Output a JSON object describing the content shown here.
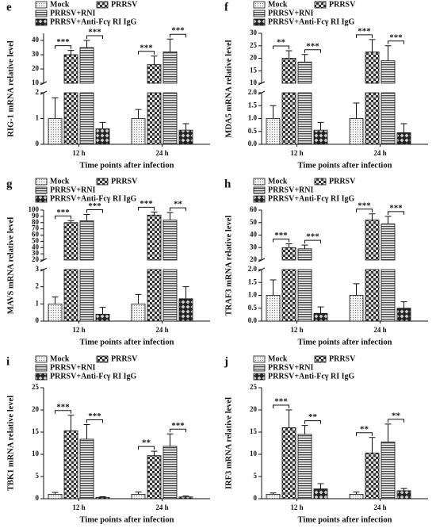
{
  "chart_data": [
    {
      "type": "bar",
      "panel_label": "e",
      "ylabel": "RIG-1 mRNA relative level",
      "xlabel": "Time points after infection",
      "categories": [
        "12 h",
        "24 h"
      ],
      "y_segments": [
        {
          "ylim": [
            0,
            2
          ],
          "yticks": [
            0,
            1,
            2
          ]
        },
        {
          "ylim": [
            10,
            45
          ],
          "yticks": [
            10,
            20,
            30,
            40
          ]
        }
      ],
      "series": [
        {
          "name": "Mock",
          "pattern": "dots",
          "values": [
            1.0,
            1.0
          ],
          "errors": [
            0.8,
            0.35
          ]
        },
        {
          "name": "PRRSV",
          "pattern": "checker",
          "values": [
            30,
            23
          ],
          "errors": [
            3,
            6
          ]
        },
        {
          "name": "PRRSV+RNI",
          "pattern": "stripes",
          "values": [
            35,
            32
          ],
          "errors": [
            5,
            9
          ]
        },
        {
          "name": "PRRSV+Anti-Fcγ RI IgG",
          "pattern": "diamond",
          "values": [
            0.6,
            0.55
          ],
          "errors": [
            0.25,
            0.25
          ]
        }
      ],
      "annotations": [
        {
          "text": "***",
          "category": 0,
          "series": [
            0,
            1
          ]
        },
        {
          "text": "***",
          "category": 0,
          "series": [
            2,
            3
          ]
        },
        {
          "text": "***",
          "category": 1,
          "series": [
            0,
            1
          ]
        },
        {
          "text": "***",
          "category": 1,
          "series": [
            2,
            3
          ]
        }
      ]
    },
    {
      "type": "bar",
      "panel_label": "f",
      "ylabel": "MDA5 mRNA relative level",
      "xlabel": "Time points after infection",
      "categories": [
        "12 h",
        "24 h"
      ],
      "y_segments": [
        {
          "ylim": [
            0,
            2
          ],
          "yticks": [
            {
              "value": 0,
              "label": "0.0"
            },
            0.5,
            {
              "value": 1,
              "label": "1.0"
            },
            1.5,
            {
              "value": 2,
              "label": "2.0"
            }
          ]
        },
        {
          "ylim": [
            10,
            30
          ],
          "yticks": [
            10,
            15,
            20,
            25,
            30
          ]
        }
      ],
      "series": [
        {
          "name": "Mock",
          "pattern": "dots",
          "values": [
            1.0,
            1.0
          ],
          "errors": [
            0.5,
            0.6
          ]
        },
        {
          "name": "PRRSV",
          "pattern": "checker",
          "values": [
            20,
            22.5
          ],
          "errors": [
            3,
            5
          ]
        },
        {
          "name": "PRRSV+RNI",
          "pattern": "stripes",
          "values": [
            18.5,
            19
          ],
          "errors": [
            3,
            6
          ]
        },
        {
          "name": "PRRSV+Anti-Fcγ RI IgG",
          "pattern": "diamond",
          "values": [
            0.55,
            0.45
          ],
          "errors": [
            0.3,
            0.35
          ]
        }
      ],
      "annotations": [
        {
          "text": "**",
          "category": 0,
          "series": [
            0,
            1
          ]
        },
        {
          "text": "***",
          "category": 0,
          "series": [
            2,
            3
          ]
        },
        {
          "text": "***",
          "category": 1,
          "series": [
            0,
            1
          ]
        },
        {
          "text": "***",
          "category": 1,
          "series": [
            2,
            3
          ]
        }
      ]
    },
    {
      "type": "bar",
      "panel_label": "g",
      "ylabel": "MAVS mRNA relative level",
      "xlabel": "Time points after infection",
      "categories": [
        "12 h",
        "24 h"
      ],
      "y_segments": [
        {
          "ylim": [
            0,
            3
          ],
          "yticks": [
            0,
            1,
            2,
            3
          ]
        },
        {
          "ylim": [
            20,
            100
          ],
          "yticks": [
            20,
            30,
            40,
            50,
            60,
            70,
            80,
            90,
            100
          ]
        }
      ],
      "series": [
        {
          "name": "Mock",
          "pattern": "dots",
          "values": [
            1.0,
            1.0
          ],
          "errors": [
            0.4,
            0.55
          ]
        },
        {
          "name": "PRRSV",
          "pattern": "checker",
          "values": [
            80,
            92
          ],
          "errors": [
            3,
            5
          ]
        },
        {
          "name": "PRRSV+RNI",
          "pattern": "stripes",
          "values": [
            83,
            84
          ],
          "errors": [
            10,
            12
          ]
        },
        {
          "name": "PRRSV+Anti-Fcγ RI IgG",
          "pattern": "diamond",
          "values": [
            0.4,
            1.3
          ],
          "errors": [
            0.4,
            0.7
          ]
        }
      ],
      "annotations": [
        {
          "text": "***",
          "category": 0,
          "series": [
            0,
            1
          ]
        },
        {
          "text": "***",
          "category": 0,
          "series": [
            2,
            3
          ]
        },
        {
          "text": "***",
          "category": 1,
          "series": [
            0,
            1
          ]
        },
        {
          "text": "**",
          "category": 1,
          "series": [
            2,
            3
          ]
        }
      ]
    },
    {
      "type": "bar",
      "panel_label": "h",
      "ylabel": "TRAF3 mRNA relative level",
      "xlabel": "Time points after infection",
      "categories": [
        "12 h",
        "24 h"
      ],
      "y_segments": [
        {
          "ylim": [
            0,
            2
          ],
          "yticks": [
            {
              "value": 0,
              "label": "0.0"
            },
            0.5,
            {
              "value": 1,
              "label": "1.0"
            },
            1.5,
            {
              "value": 2,
              "label": "2.0"
            }
          ]
        },
        {
          "ylim": [
            20,
            60
          ],
          "yticks": [
            20,
            30,
            40,
            50,
            60
          ]
        }
      ],
      "series": [
        {
          "name": "Mock",
          "pattern": "dots",
          "values": [
            1.0,
            1.0
          ],
          "errors": [
            0.6,
            0.45
          ]
        },
        {
          "name": "PRRSV",
          "pattern": "checker",
          "values": [
            30,
            52
          ],
          "errors": [
            3,
            5
          ]
        },
        {
          "name": "PRRSV+RNI",
          "pattern": "stripes",
          "values": [
            29,
            49
          ],
          "errors": [
            3,
            6
          ]
        },
        {
          "name": "PRRSV+Anti-Fcγ RI IgG",
          "pattern": "diamond",
          "values": [
            0.3,
            0.5
          ],
          "errors": [
            0.25,
            0.25
          ]
        }
      ],
      "annotations": [
        {
          "text": "***",
          "category": 0,
          "series": [
            0,
            1
          ]
        },
        {
          "text": "***",
          "category": 0,
          "series": [
            2,
            3
          ]
        },
        {
          "text": "***",
          "category": 1,
          "series": [
            0,
            1
          ]
        },
        {
          "text": "***",
          "category": 1,
          "series": [
            2,
            3
          ]
        }
      ]
    },
    {
      "type": "bar",
      "panel_label": "i",
      "ylabel": "TBK1 mRNA relative level",
      "xlabel": "Time points after infection",
      "categories": [
        "12 h",
        "24 h"
      ],
      "y_segments": [
        {
          "ylim": [
            0,
            25
          ],
          "yticks": [
            0,
            5,
            10,
            15,
            20,
            25
          ]
        }
      ],
      "series": [
        {
          "name": "Mock",
          "pattern": "dots",
          "values": [
            1.0,
            1.0
          ],
          "errors": [
            0.4,
            0.5
          ]
        },
        {
          "name": "PRRSV",
          "pattern": "checker",
          "values": [
            15.3,
            9.7
          ],
          "errors": [
            3.5,
            1
          ]
        },
        {
          "name": "PRRSV+RNI",
          "pattern": "stripes",
          "values": [
            13.4,
            11.8
          ],
          "errors": [
            3.3,
            2.8
          ]
        },
        {
          "name": "PRRSV+Anti-Fcγ RI IgG",
          "pattern": "diamond",
          "values": [
            0.3,
            0.4
          ],
          "errors": [
            0.15,
            0.2
          ]
        }
      ],
      "annotations": [
        {
          "text": "***",
          "category": 0,
          "series": [
            0,
            1
          ]
        },
        {
          "text": "***",
          "category": 0,
          "series": [
            2,
            3
          ]
        },
        {
          "text": "**",
          "category": 1,
          "series": [
            0,
            1
          ]
        },
        {
          "text": "***",
          "category": 1,
          "series": [
            2,
            3
          ]
        }
      ]
    },
    {
      "type": "bar",
      "panel_label": "j",
      "ylabel": "IRF3 mRNA relative level",
      "xlabel": "Time points after infection",
      "categories": [
        "12 h",
        "24 h"
      ],
      "y_segments": [
        {
          "ylim": [
            0,
            25
          ],
          "yticks": [
            0,
            5,
            10,
            15,
            20,
            25
          ]
        }
      ],
      "series": [
        {
          "name": "Mock",
          "pattern": "dots",
          "values": [
            1.0,
            1.0
          ],
          "errors": [
            0.3,
            0.5
          ]
        },
        {
          "name": "PRRSV",
          "pattern": "checker",
          "values": [
            16,
            10.3
          ],
          "errors": [
            4,
            3.5
          ]
        },
        {
          "name": "PRRSV+RNI",
          "pattern": "stripes",
          "values": [
            14.5,
            12.8
          ],
          "errors": [
            2,
            4
          ]
        },
        {
          "name": "PRRSV+Anti-Fcγ RI IgG",
          "pattern": "diamond",
          "values": [
            2.2,
            1.8
          ],
          "errors": [
            1.2,
            0.5
          ]
        }
      ],
      "annotations": [
        {
          "text": "***",
          "category": 0,
          "series": [
            0,
            1
          ]
        },
        {
          "text": "**",
          "category": 0,
          "series": [
            2,
            3
          ]
        },
        {
          "text": "**",
          "category": 1,
          "series": [
            0,
            1
          ]
        },
        {
          "text": "**",
          "category": 1,
          "series": [
            2,
            3
          ]
        }
      ]
    }
  ]
}
